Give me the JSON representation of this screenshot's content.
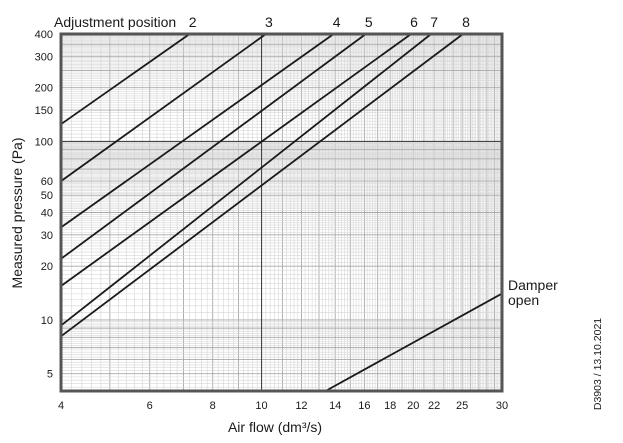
{
  "chart_data": {
    "type": "line",
    "title": "",
    "xlabel": "Air flow (dm³/s)",
    "ylabel": "Measured pressure (Pa)",
    "x_scale": "log",
    "y_scale": "log",
    "xlim": [
      4,
      30
    ],
    "ylim": [
      4,
      400
    ],
    "grid": true,
    "x_ticks": [
      4,
      6,
      8,
      10,
      12,
      14,
      16,
      18,
      20,
      22,
      25,
      30
    ],
    "x_tick_labels": [
      "4",
      "6",
      "8",
      "10",
      "12",
      "14",
      "16",
      "18",
      "20",
      "22",
      "25",
      "30"
    ],
    "y_ticks": [
      5,
      10,
      20,
      30,
      40,
      50,
      60,
      100,
      150,
      200,
      300,
      400
    ],
    "y_tick_labels": [
      "5",
      "10",
      "20",
      "30",
      "40",
      "50",
      "60",
      "100",
      "150",
      "200",
      "300",
      "400"
    ],
    "legend_prefix": "Adjustment position",
    "series": [
      {
        "name": "2",
        "x": [
          4,
          7.2
        ],
        "y": [
          125,
          400
        ]
      },
      {
        "name": "3",
        "x": [
          4,
          10.2
        ],
        "y": [
          60,
          400
        ]
      },
      {
        "name": "4",
        "x": [
          4,
          13.9
        ],
        "y": [
          33,
          400
        ]
      },
      {
        "name": "5",
        "x": [
          4,
          16.1
        ],
        "y": [
          22,
          400
        ]
      },
      {
        "name": "6",
        "x": [
          4,
          19.8
        ],
        "y": [
          15.5,
          400
        ]
      },
      {
        "name": "7",
        "x": [
          4,
          21.7
        ],
        "y": [
          9.3,
          400
        ]
      },
      {
        "name": "8",
        "x": [
          4,
          25.1
        ],
        "y": [
          8.1,
          400
        ]
      },
      {
        "name": "Damper open",
        "x": [
          13.4,
          29.9
        ],
        "y": [
          4,
          14
        ]
      }
    ],
    "side_note": "D3903 / 13.10.2021",
    "colors": {
      "curve": "#1a1a1a",
      "frame": "#555555",
      "grid_major": "#a8a8a8",
      "grid_minor": "#d6d6d6",
      "guide": "#444444"
    }
  }
}
